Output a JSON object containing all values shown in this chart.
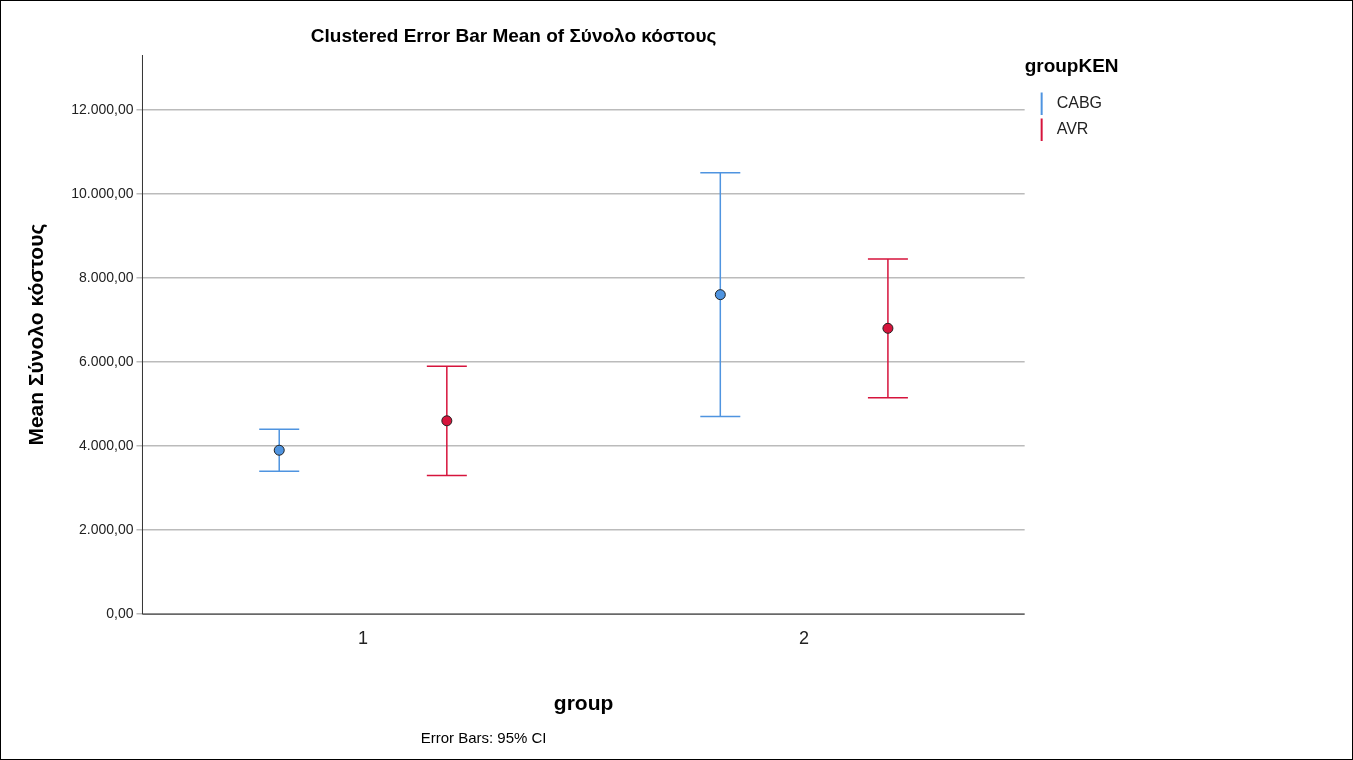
{
  "chart_data": {
    "type": "scatter",
    "title": "Clustered Error Bar Mean of Σύνολο κόστους",
    "xlabel": "group",
    "ylabel": "Mean Σύνολο κόστους",
    "legend_title": "groupKEN",
    "categories": [
      "1",
      "2"
    ],
    "series": [
      {
        "name": "CABG",
        "color": "#4f94e0",
        "x": [
          "1",
          "2"
        ],
        "values": [
          3900,
          7600
        ],
        "errors": [
          [
            3400,
            4400
          ],
          [
            4700,
            10500
          ]
        ]
      },
      {
        "name": "AVR",
        "color": "#d6143c",
        "x": [
          "1",
          "2"
        ],
        "values": [
          4600,
          6800
        ],
        "errors": [
          [
            3300,
            5900
          ],
          [
            5150,
            8450
          ]
        ]
      }
    ],
    "ylim": [
      0,
      13300
    ],
    "yticks": [
      {
        "value": 0,
        "label": "0,00"
      },
      {
        "value": 2000,
        "label": "2.000,00"
      },
      {
        "value": 4000,
        "label": "4.000,00"
      },
      {
        "value": 6000,
        "label": "6.000,00"
      },
      {
        "value": 8000,
        "label": "8.000,00"
      },
      {
        "value": 10000,
        "label": "10.000,00"
      },
      {
        "value": 12000,
        "label": "12.000,00"
      }
    ],
    "grid": "y",
    "legend": "top right",
    "marker": "circle",
    "annotations": [
      "Error Bars: 95% CI"
    ]
  }
}
